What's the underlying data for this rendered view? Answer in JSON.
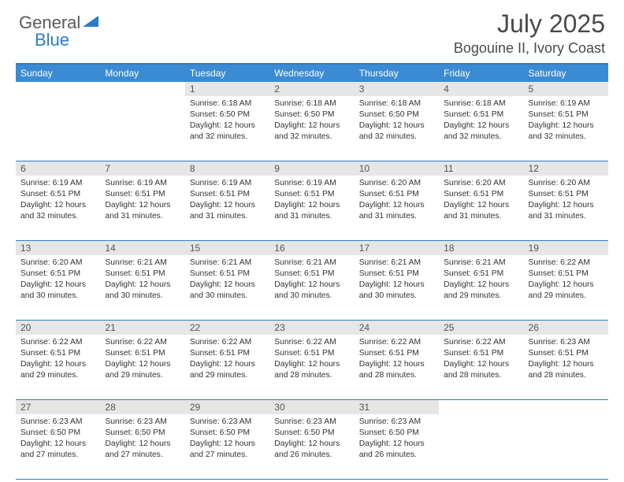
{
  "logo": {
    "part1": "General",
    "part2": "Blue"
  },
  "title": "July 2025",
  "location": "Bogouine II, Ivory Coast",
  "colors": {
    "accent": "#3b8bd4",
    "border": "#2b7cc7",
    "daynum_bg": "#e6e6e6",
    "text": "#333333",
    "title_text": "#4a4a4a"
  },
  "days_of_week": [
    "Sunday",
    "Monday",
    "Tuesday",
    "Wednesday",
    "Thursday",
    "Friday",
    "Saturday"
  ],
  "weeks": [
    [
      {
        "n": "",
        "sr": "",
        "ss": "",
        "dl": ""
      },
      {
        "n": "",
        "sr": "",
        "ss": "",
        "dl": ""
      },
      {
        "n": "1",
        "sr": "6:18 AM",
        "ss": "6:50 PM",
        "dl": "12 hours and 32 minutes."
      },
      {
        "n": "2",
        "sr": "6:18 AM",
        "ss": "6:50 PM",
        "dl": "12 hours and 32 minutes."
      },
      {
        "n": "3",
        "sr": "6:18 AM",
        "ss": "6:50 PM",
        "dl": "12 hours and 32 minutes."
      },
      {
        "n": "4",
        "sr": "6:18 AM",
        "ss": "6:51 PM",
        "dl": "12 hours and 32 minutes."
      },
      {
        "n": "5",
        "sr": "6:19 AM",
        "ss": "6:51 PM",
        "dl": "12 hours and 32 minutes."
      }
    ],
    [
      {
        "n": "6",
        "sr": "6:19 AM",
        "ss": "6:51 PM",
        "dl": "12 hours and 32 minutes."
      },
      {
        "n": "7",
        "sr": "6:19 AM",
        "ss": "6:51 PM",
        "dl": "12 hours and 31 minutes."
      },
      {
        "n": "8",
        "sr": "6:19 AM",
        "ss": "6:51 PM",
        "dl": "12 hours and 31 minutes."
      },
      {
        "n": "9",
        "sr": "6:19 AM",
        "ss": "6:51 PM",
        "dl": "12 hours and 31 minutes."
      },
      {
        "n": "10",
        "sr": "6:20 AM",
        "ss": "6:51 PM",
        "dl": "12 hours and 31 minutes."
      },
      {
        "n": "11",
        "sr": "6:20 AM",
        "ss": "6:51 PM",
        "dl": "12 hours and 31 minutes."
      },
      {
        "n": "12",
        "sr": "6:20 AM",
        "ss": "6:51 PM",
        "dl": "12 hours and 31 minutes."
      }
    ],
    [
      {
        "n": "13",
        "sr": "6:20 AM",
        "ss": "6:51 PM",
        "dl": "12 hours and 30 minutes."
      },
      {
        "n": "14",
        "sr": "6:21 AM",
        "ss": "6:51 PM",
        "dl": "12 hours and 30 minutes."
      },
      {
        "n": "15",
        "sr": "6:21 AM",
        "ss": "6:51 PM",
        "dl": "12 hours and 30 minutes."
      },
      {
        "n": "16",
        "sr": "6:21 AM",
        "ss": "6:51 PM",
        "dl": "12 hours and 30 minutes."
      },
      {
        "n": "17",
        "sr": "6:21 AM",
        "ss": "6:51 PM",
        "dl": "12 hours and 30 minutes."
      },
      {
        "n": "18",
        "sr": "6:21 AM",
        "ss": "6:51 PM",
        "dl": "12 hours and 29 minutes."
      },
      {
        "n": "19",
        "sr": "6:22 AM",
        "ss": "6:51 PM",
        "dl": "12 hours and 29 minutes."
      }
    ],
    [
      {
        "n": "20",
        "sr": "6:22 AM",
        "ss": "6:51 PM",
        "dl": "12 hours and 29 minutes."
      },
      {
        "n": "21",
        "sr": "6:22 AM",
        "ss": "6:51 PM",
        "dl": "12 hours and 29 minutes."
      },
      {
        "n": "22",
        "sr": "6:22 AM",
        "ss": "6:51 PM",
        "dl": "12 hours and 29 minutes."
      },
      {
        "n": "23",
        "sr": "6:22 AM",
        "ss": "6:51 PM",
        "dl": "12 hours and 28 minutes."
      },
      {
        "n": "24",
        "sr": "6:22 AM",
        "ss": "6:51 PM",
        "dl": "12 hours and 28 minutes."
      },
      {
        "n": "25",
        "sr": "6:22 AM",
        "ss": "6:51 PM",
        "dl": "12 hours and 28 minutes."
      },
      {
        "n": "26",
        "sr": "6:23 AM",
        "ss": "6:51 PM",
        "dl": "12 hours and 28 minutes."
      }
    ],
    [
      {
        "n": "27",
        "sr": "6:23 AM",
        "ss": "6:50 PM",
        "dl": "12 hours and 27 minutes."
      },
      {
        "n": "28",
        "sr": "6:23 AM",
        "ss": "6:50 PM",
        "dl": "12 hours and 27 minutes."
      },
      {
        "n": "29",
        "sr": "6:23 AM",
        "ss": "6:50 PM",
        "dl": "12 hours and 27 minutes."
      },
      {
        "n": "30",
        "sr": "6:23 AM",
        "ss": "6:50 PM",
        "dl": "12 hours and 26 minutes."
      },
      {
        "n": "31",
        "sr": "6:23 AM",
        "ss": "6:50 PM",
        "dl": "12 hours and 26 minutes."
      },
      {
        "n": "",
        "sr": "",
        "ss": "",
        "dl": ""
      },
      {
        "n": "",
        "sr": "",
        "ss": "",
        "dl": ""
      }
    ]
  ],
  "labels": {
    "sunrise": "Sunrise:",
    "sunset": "Sunset:",
    "daylight": "Daylight:"
  }
}
